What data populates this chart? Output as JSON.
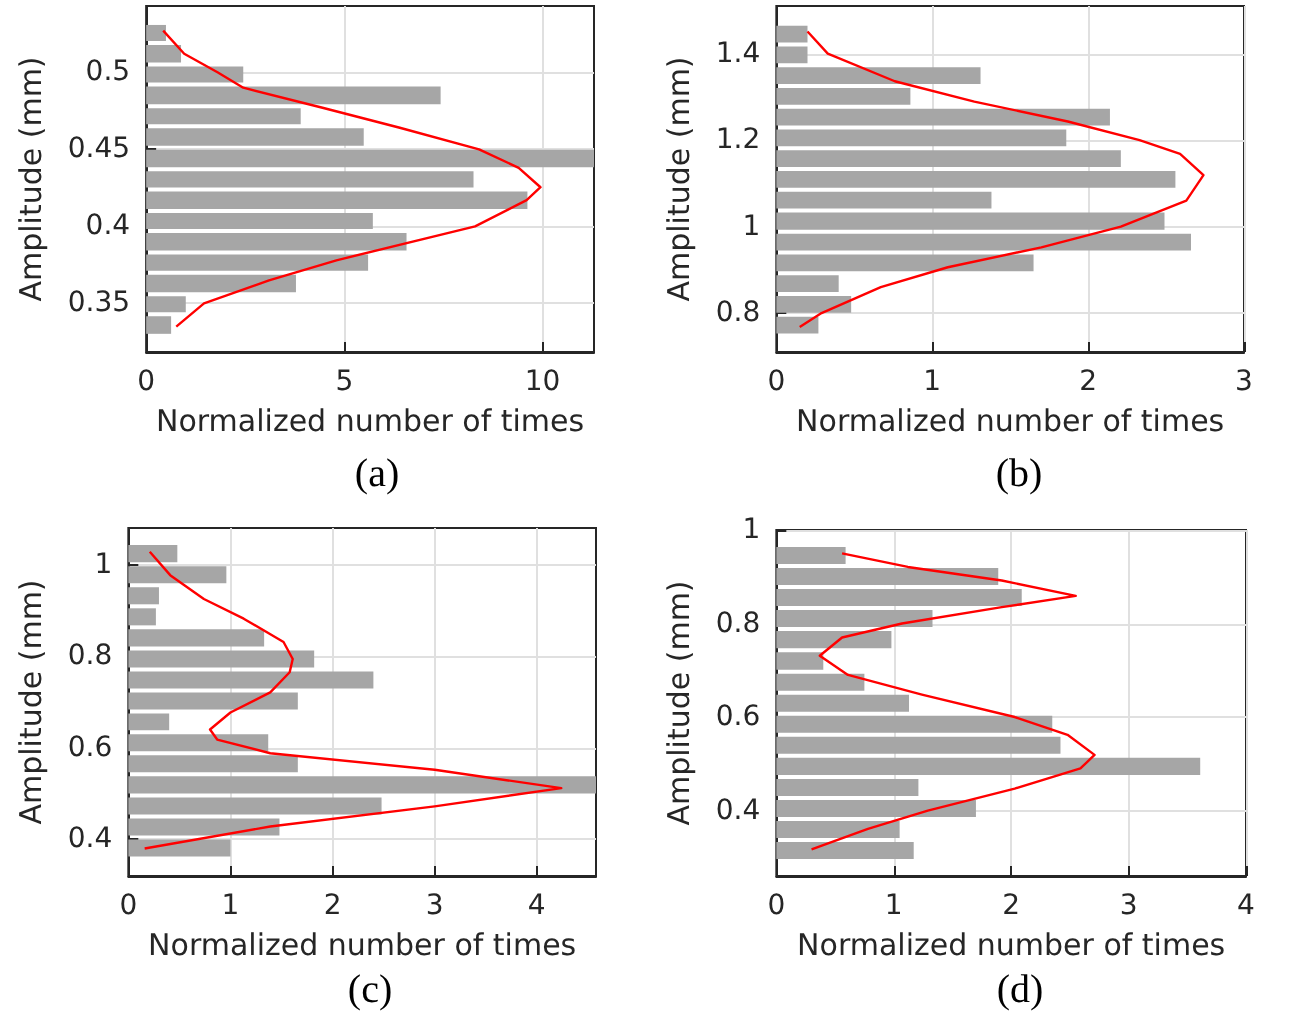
{
  "chart_data": [
    {
      "type": "histogram",
      "orientation": "horizontal",
      "xlabel": "Normalized number of times",
      "ylabel": "Amplitude (mm)",
      "annotations": [
        "(a)"
      ],
      "grid": true,
      "bins": [
        0.329,
        0.343,
        0.356,
        0.37,
        0.383,
        0.397,
        0.41,
        0.424,
        0.437,
        0.451,
        0.465,
        0.478,
        0.492,
        0.505,
        0.519,
        0.532
      ],
      "values": [
        0.63,
        1.0,
        3.78,
        5.6,
        6.57,
        5.72,
        9.62,
        8.26,
        11.3,
        5.49,
        3.9,
        7.43,
        2.45,
        0.88,
        0.5
      ],
      "color": "#a6a6a6",
      "series": [
        {
          "type": "line",
          "color": "#ff0000",
          "x": [
            0.335,
            0.35,
            0.365,
            0.378,
            0.4,
            0.417,
            0.4254,
            0.438,
            0.45,
            0.464,
            0.477,
            0.49,
            0.5,
            0.512,
            0.527
          ],
          "values": [
            0.76,
            1.46,
            3.1,
            4.8,
            8.3,
            9.6,
            9.95,
            9.4,
            8.4,
            6.4,
            4.45,
            2.45,
            1.8,
            0.96,
            0.43
          ]
        }
      ],
      "xlim": [
        0,
        11.3
      ],
      "xticks": [
        0,
        5,
        10
      ],
      "ylim": [
        0.3185,
        0.543
      ],
      "yticks": [
        0.35,
        0.4,
        0.45,
        0.5
      ]
    },
    {
      "type": "histogram",
      "orientation": "horizontal",
      "xlabel": "Normalized number of times",
      "ylabel": "Amplitude (mm)",
      "annotations": [
        "(b)"
      ],
      "grid": true,
      "bins": [
        0.748,
        0.796,
        0.844,
        0.892,
        0.94,
        0.988,
        1.037,
        1.085,
        1.133,
        1.181,
        1.229,
        1.277,
        1.325,
        1.373,
        1.421,
        1.469
      ],
      "values": [
        0.27,
        0.48,
        0.4,
        1.65,
        2.66,
        2.49,
        1.38,
        2.56,
        2.21,
        1.86,
        2.14,
        0.86,
        1.31,
        0.2,
        0.2
      ],
      "color": "#a6a6a6",
      "series": [
        {
          "type": "line",
          "color": "#ff0000",
          "x": [
            0.768,
            0.8,
            0.86,
            0.906,
            0.952,
            1.0,
            1.06,
            1.119,
            1.168,
            1.2,
            1.243,
            1.289,
            1.336,
            1.4,
            1.451
          ],
          "values": [
            0.15,
            0.29,
            0.67,
            1.1,
            1.7,
            2.21,
            2.63,
            2.74,
            2.59,
            2.33,
            1.87,
            1.27,
            0.76,
            0.33,
            0.2
          ]
        }
      ],
      "xlim": [
        0,
        3
      ],
      "xticks": [
        0,
        1,
        2,
        3
      ],
      "ylim": [
        0.71,
        1.51
      ],
      "yticks": [
        0.8,
        1,
        1.2,
        1.4
      ]
    },
    {
      "type": "histogram",
      "orientation": "horizontal",
      "xlabel": "Normalized number of times",
      "ylabel": "Amplitude (mm)",
      "annotations": [
        "(c)"
      ],
      "grid": true,
      "bins": [
        0.358,
        0.404,
        0.45,
        0.496,
        0.542,
        0.588,
        0.634,
        0.679,
        0.725,
        0.771,
        0.817,
        0.863,
        0.909,
        0.955,
        1.001,
        1.047
      ],
      "values": [
        1.0,
        1.48,
        2.48,
        4.58,
        1.66,
        1.37,
        0.4,
        1.66,
        2.4,
        1.82,
        1.33,
        0.27,
        0.3,
        0.96,
        0.48
      ],
      "color": "#a6a6a6",
      "series": [
        {
          "type": "line",
          "color": "#ff0000",
          "x": [
            0.38,
            0.428,
            0.472,
            0.512,
            0.552,
            0.588,
            0.618,
            0.64,
            0.677,
            0.721,
            0.765,
            0.794,
            0.831,
            0.882,
            0.925,
            0.977,
            1.028
          ],
          "values": [
            0.16,
            1.39,
            3.0,
            4.24,
            3.0,
            1.39,
            0.87,
            0.8,
            1.0,
            1.39,
            1.58,
            1.61,
            1.52,
            1.13,
            0.74,
            0.41,
            0.21
          ]
        }
      ],
      "xlim": [
        0,
        4.58
      ],
      "xticks": [
        0,
        1,
        2,
        3,
        4
      ],
      "ylim": [
        0.32,
        1.08
      ],
      "yticks": [
        0.4,
        0.6,
        0.8,
        1
      ]
    },
    {
      "type": "histogram",
      "orientation": "horizontal",
      "xlabel": "Normalized number of times",
      "ylabel": "Amplitude (mm)",
      "annotations": [
        "(d)"
      ],
      "grid": true,
      "bins": [
        0.292,
        0.337,
        0.382,
        0.427,
        0.472,
        0.517,
        0.562,
        0.607,
        0.652,
        0.697,
        0.743,
        0.788,
        0.833,
        0.878,
        0.923,
        0.968
      ],
      "values": [
        1.17,
        1.05,
        1.7,
        1.21,
        3.61,
        2.42,
        2.35,
        1.13,
        0.75,
        0.4,
        0.98,
        1.33,
        2.09,
        1.89,
        0.59
      ],
      "color": "#a6a6a6",
      "series": [
        {
          "type": "line",
          "color": "#ff0000",
          "x": [
            0.317,
            0.361,
            0.4,
            0.447,
            0.49,
            0.519,
            0.562,
            0.6,
            0.648,
            0.69,
            0.731,
            0.77,
            0.8,
            0.835,
            0.859,
            0.892,
            0.921,
            0.95
          ],
          "values": [
            0.3,
            0.78,
            1.29,
            2.03,
            2.59,
            2.71,
            2.48,
            2.03,
            1.24,
            0.61,
            0.37,
            0.56,
            1.07,
            1.92,
            2.55,
            1.92,
            1.12,
            0.56
          ]
        }
      ],
      "xlim": [
        0,
        4
      ],
      "xticks": [
        0,
        1,
        2,
        3,
        4
      ],
      "ylim": [
        0.26,
        1
      ],
      "yticks": [
        0.4,
        0.6,
        0.8,
        1
      ]
    }
  ]
}
